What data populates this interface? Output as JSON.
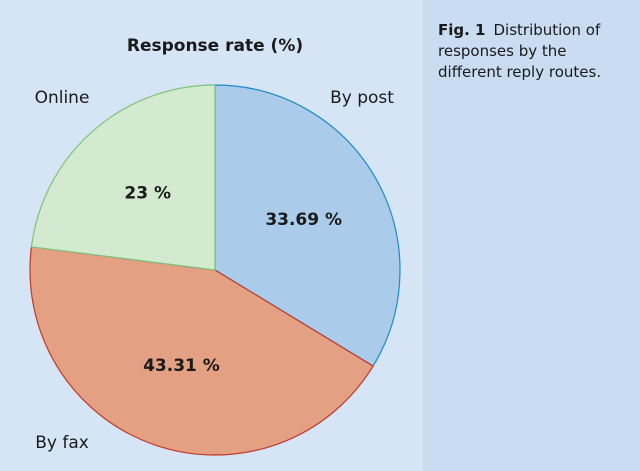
{
  "chart_data": {
    "type": "pie",
    "title": "Response rate (%)",
    "categories": [
      "By post",
      "By fax",
      "Online"
    ],
    "values": [
      33.69,
      43.31,
      23
    ],
    "value_labels": [
      "33.69 %",
      "43.31 %",
      "23 %"
    ],
    "colors": [
      "#abcbeb",
      "#e3a083",
      "#d3ead1"
    ],
    "edge_colors": [
      "#1b8bc8",
      "#c0392b",
      "#7cc47a"
    ]
  },
  "caption": {
    "label": "Fig. 1",
    "text": "Distribution of responses by the different reply routes."
  }
}
